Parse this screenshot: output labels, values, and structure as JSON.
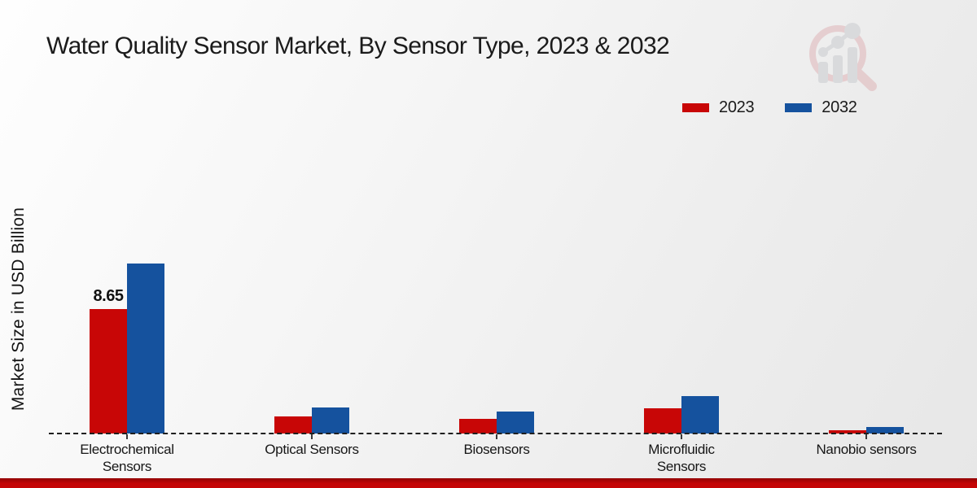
{
  "title": "Water Quality Sensor Market, By Sensor Type, 2023 & 2032",
  "y_axis": {
    "label": "Market Size in USD Billion"
  },
  "legend": {
    "items": [
      {
        "label": "2023",
        "color": "#c80606"
      },
      {
        "label": "2032",
        "color": "#15529e"
      }
    ]
  },
  "watermark_icon": "magnifier-bar-chart-logo",
  "footer": {
    "accent_color": "#c40506"
  },
  "chart_data": {
    "type": "bar",
    "categories": [
      "Electrochemical Sensors",
      "Optical Sensors",
      "Biosensors",
      "Microfluidic Sensors",
      "Nanobio sensors"
    ],
    "series": [
      {
        "name": "2023",
        "color": "#c80606",
        "values": [
          8.65,
          1.2,
          1.0,
          1.75,
          0.2
        ]
      },
      {
        "name": "2032",
        "color": "#15529e",
        "values": [
          11.8,
          1.8,
          1.5,
          2.6,
          0.45
        ]
      }
    ],
    "title": "Water Quality Sensor Market, By Sensor Type, 2023 & 2032",
    "xlabel": "",
    "ylabel": "Market Size in USD Billion",
    "ylim": [
      0,
      13
    ],
    "grid": false,
    "legend_position": "top-right",
    "baseline_style": "dashed",
    "data_labels": [
      {
        "series": "2023",
        "category": "Electrochemical Sensors",
        "text": "8.65"
      }
    ]
  }
}
